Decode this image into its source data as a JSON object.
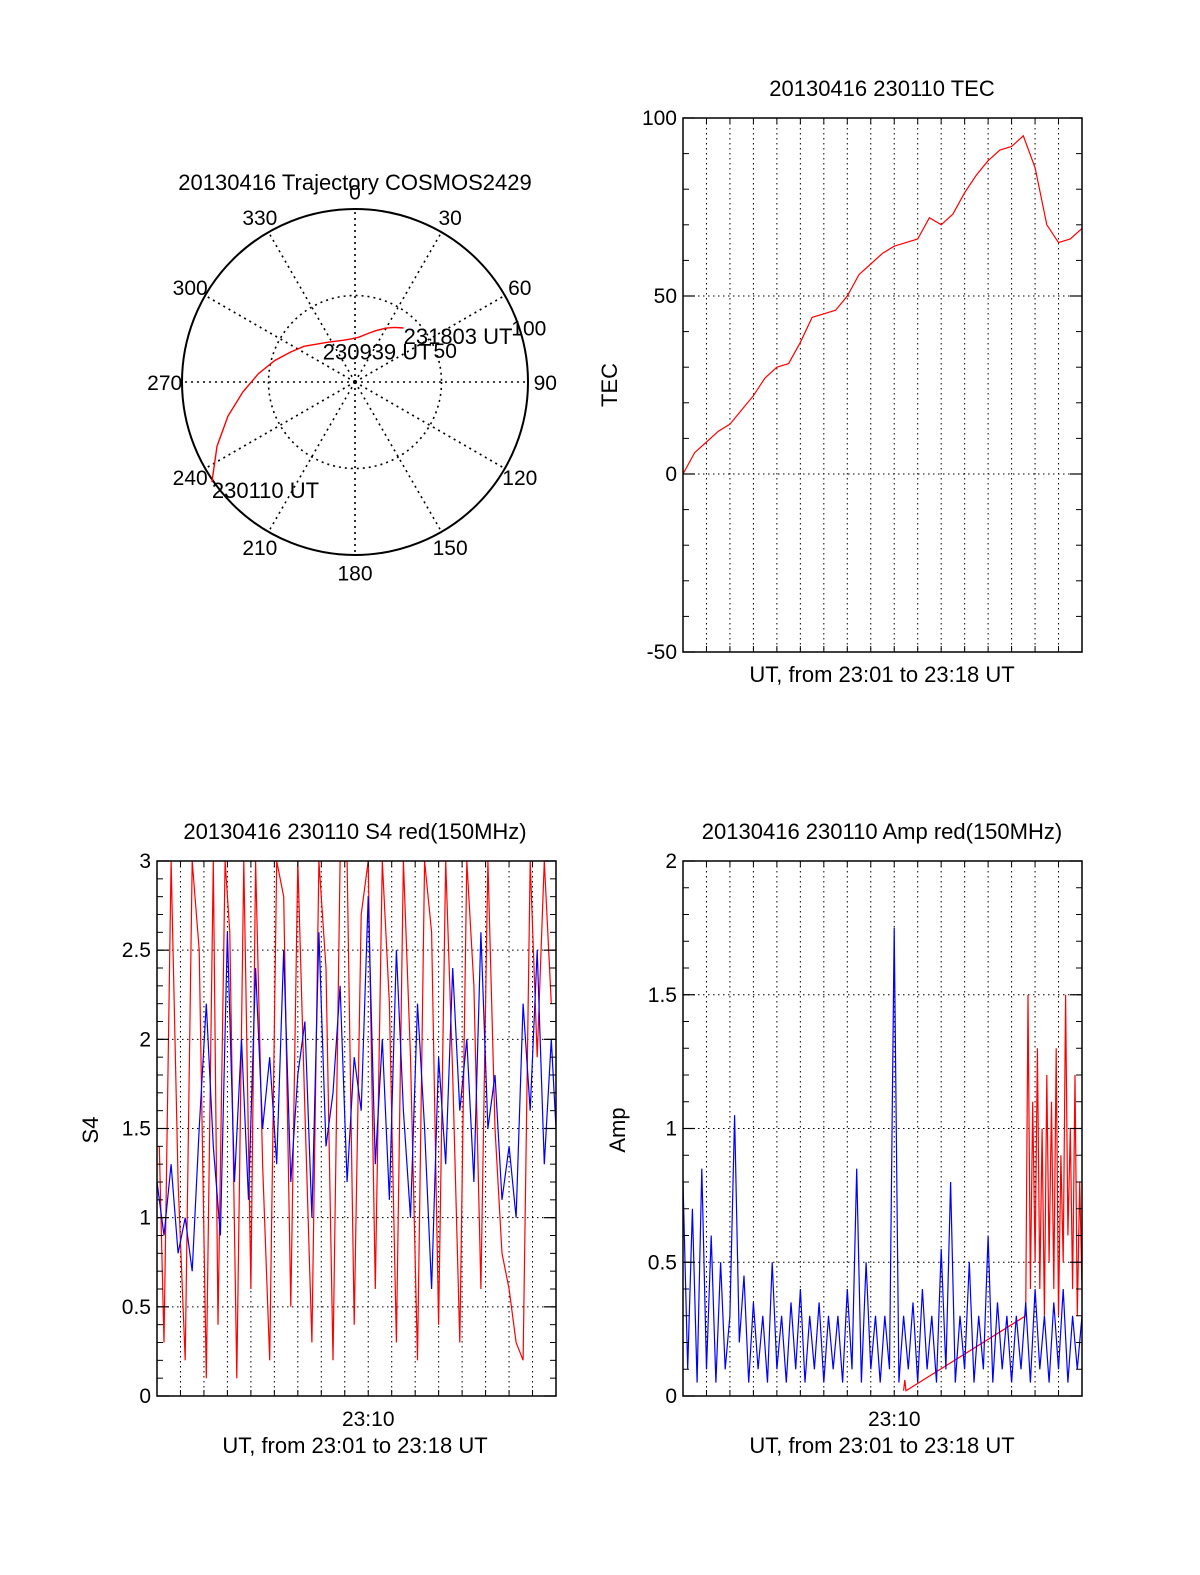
{
  "chart_data": [
    {
      "id": "trajectory",
      "type": "polar",
      "title": "20130416 Trajectory COSMOS2429",
      "angle_labels": [
        "0",
        "30",
        "60",
        "90",
        "120",
        "150",
        "180",
        "210",
        "240",
        "270",
        "300",
        "330"
      ],
      "radial_labels": [
        "50",
        "100"
      ],
      "radial_label_values": [
        50,
        100
      ],
      "series": [
        {
          "color": "#ff0000",
          "points": [
            [
              235,
              101
            ],
            [
              245,
              88
            ],
            [
              255,
              76
            ],
            [
              265,
              65
            ],
            [
              275,
              56
            ],
            [
              285,
              48
            ],
            [
              295,
              41
            ],
            [
              305,
              36
            ],
            [
              315,
              31
            ],
            [
              325,
              28
            ],
            [
              335,
              26
            ],
            [
              345,
              25
            ],
            [
              355,
              25
            ],
            [
              5,
              26
            ],
            [
              15,
              29
            ],
            [
              22,
              32
            ],
            [
              30,
              36
            ],
            [
              36,
              39
            ],
            [
              42,
              42
            ]
          ]
        }
      ],
      "annotations": [
        {
          "text": "230110 UT",
          "az": 235,
          "r": 101
        },
        {
          "text": "230939 UT",
          "az": 320,
          "r": 29
        },
        {
          "text": "231803 UT",
          "az": 42,
          "r": 42
        }
      ]
    },
    {
      "id": "tec",
      "type": "line",
      "title": "20130416 230110 TEC",
      "xlabel": "UT, from 23:01 to 23:18 UT",
      "ylabel": "TEC",
      "xlim": [
        0,
        17
      ],
      "ylim": [
        -50,
        100
      ],
      "yticks": [
        "-50",
        "0",
        "50",
        "100"
      ],
      "ytick_values": [
        -50,
        0,
        50,
        100
      ],
      "grid": true,
      "series": [
        {
          "color": "#ff0000",
          "x": [
            0,
            0.5,
            1,
            1.5,
            2,
            2.5,
            3,
            3.5,
            4,
            4.5,
            5,
            5.5,
            6,
            6.5,
            7,
            7.5,
            8,
            8.5,
            9,
            9.5,
            10,
            10.5,
            11,
            11.5,
            12,
            12.5,
            13,
            13.5,
            14,
            14.5,
            15,
            15.5,
            16,
            16.5,
            17
          ],
          "y": [
            0,
            6,
            9,
            12,
            14,
            18,
            22,
            27,
            30,
            31,
            37,
            44,
            45,
            46,
            50,
            56,
            59,
            62,
            64,
            65,
            66,
            72,
            70,
            73,
            79,
            84,
            88,
            91,
            92,
            95,
            86,
            70,
            65,
            66,
            69
          ]
        }
      ]
    },
    {
      "id": "s4",
      "type": "line",
      "title": "20130416 230110 S4 red(150MHz)",
      "xlabel": "UT, from 23:01 to 23:18 UT",
      "ylabel": "S4",
      "xlim": [
        0,
        17
      ],
      "ylim": [
        0,
        3
      ],
      "xticks": [
        "23:10"
      ],
      "xtick_values": [
        9
      ],
      "yticks": [
        "0",
        "0.5",
        "1",
        "1.5",
        "2",
        "2.5",
        "3"
      ],
      "ytick_values": [
        0,
        0.5,
        1,
        1.5,
        2,
        2.5,
        3
      ],
      "grid": true,
      "series": [
        {
          "color": "#ff0000",
          "x": [
            0.1,
            0.3,
            0.6,
            0.9,
            1.2,
            1.5,
            1.8,
            2.1,
            2.4,
            2.6,
            2.9,
            3.1,
            3.4,
            3.7,
            4.0,
            4.2,
            4.5,
            4.8,
            5.1,
            5.4,
            5.7,
            6.0,
            6.3,
            6.6,
            6.9,
            7.2,
            7.5,
            7.8,
            8.1,
            8.4,
            8.7,
            9.0,
            9.3,
            9.6,
            9.9,
            10.2,
            10.5,
            10.8,
            11.1,
            11.4,
            11.7,
            12.0,
            12.3,
            12.6,
            12.9,
            13.2,
            13.5,
            13.8,
            14.1,
            14.4,
            14.7,
            15.0,
            15.3,
            15.6,
            15.9,
            16.2,
            16.5,
            16.8
          ],
          "y": [
            1.4,
            0.3,
            3,
            1.2,
            0.2,
            3,
            2.5,
            0.1,
            3,
            0.4,
            3,
            2.6,
            0.1,
            3,
            0.6,
            3,
            1.3,
            0.2,
            3,
            2.8,
            0.5,
            3,
            1.6,
            0.3,
            3,
            2.4,
            0.2,
            3,
            3,
            0.4,
            2.7,
            3,
            0.6,
            3,
            2.2,
            0.3,
            3,
            1.9,
            0.2,
            3,
            2.6,
            0.4,
            3,
            1.8,
            0.3,
            3,
            2.3,
            0.6,
            3,
            1.5,
            0.8,
            0.6,
            0.3,
            0.2,
            3,
            1.9,
            3,
            2.2
          ]
        },
        {
          "color": "#0000ff",
          "x": [
            0,
            0.3,
            0.6,
            0.9,
            1.2,
            1.5,
            1.8,
            2.1,
            2.4,
            2.7,
            3.0,
            3.3,
            3.6,
            3.9,
            4.2,
            4.5,
            4.8,
            5.1,
            5.4,
            5.7,
            6.0,
            6.3,
            6.6,
            6.9,
            7.2,
            7.5,
            7.8,
            8.1,
            8.4,
            8.7,
            9.0,
            9.3,
            9.6,
            9.9,
            10.2,
            10.5,
            10.8,
            11.1,
            11.4,
            11.7,
            12.0,
            12.3,
            12.6,
            12.9,
            13.2,
            13.5,
            13.8,
            14.1,
            14.4,
            14.7,
            15.0,
            15.3,
            15.6,
            15.9,
            16.2,
            16.5,
            16.8,
            17
          ],
          "y": [
            1.2,
            0.9,
            1.3,
            0.8,
            1.0,
            0.7,
            1.5,
            2.2,
            1.4,
            0.9,
            2.6,
            1.2,
            2.0,
            1.1,
            2.4,
            1.5,
            1.9,
            1.3,
            2.5,
            1.2,
            1.8,
            2.1,
            1.0,
            2.6,
            1.4,
            1.7,
            2.3,
            1.2,
            1.9,
            1.6,
            2.8,
            1.3,
            2.0,
            1.1,
            2.5,
            1.6,
            1.0,
            2.2,
            1.5,
            0.6,
            1.9,
            1.3,
            2.4,
            1.6,
            2.0,
            1.2,
            2.6,
            1.5,
            1.8,
            1.1,
            1.4,
            1.0,
            2.2,
            1.6,
            2.5,
            1.3,
            2.0,
            1.5
          ]
        }
      ]
    },
    {
      "id": "amp",
      "type": "line",
      "title": "20130416 230110 Amp red(150MHz)",
      "xlabel": "UT, from 23:01 to 23:18 UT",
      "ylabel": "Amp",
      "xlim": [
        0,
        17
      ],
      "ylim": [
        0,
        2
      ],
      "xticks": [
        "23:10"
      ],
      "xtick_values": [
        9
      ],
      "yticks": [
        "0",
        "0.5",
        "1",
        "1.5",
        "2"
      ],
      "ytick_values": [
        0,
        0.5,
        1,
        1.5,
        2
      ],
      "grid": true,
      "series": [
        {
          "color": "#ff0000",
          "x": [
            9.4,
            9.45,
            9.5,
            14.6,
            14.7,
            14.8,
            14.9,
            15.0,
            15.1,
            15.2,
            15.3,
            15.4,
            15.5,
            15.6,
            15.7,
            15.8,
            15.9,
            16.0,
            16.1,
            16.2,
            16.3,
            16.4,
            16.5,
            16.6,
            16.7,
            16.8,
            16.9,
            17.0
          ],
          "y": [
            0.02,
            0.06,
            0.02,
            0.3,
            1.5,
            0.4,
            1.1,
            0.5,
            1.3,
            0.4,
            1.0,
            0.3,
            1.2,
            0.5,
            1.1,
            0.4,
            1.3,
            0.3,
            0.9,
            0.5,
            1.5,
            0.6,
            1.0,
            0.4,
            1.2,
            0.3,
            0.8,
            0.4
          ]
        },
        {
          "color": "#0000ff",
          "x": [
            0,
            0.2,
            0.4,
            0.6,
            0.8,
            1.0,
            1.2,
            1.4,
            1.6,
            1.8,
            2.0,
            2.2,
            2.4,
            2.6,
            2.8,
            3.0,
            3.2,
            3.4,
            3.6,
            3.8,
            4.0,
            4.2,
            4.4,
            4.6,
            4.8,
            5.0,
            5.2,
            5.4,
            5.6,
            5.8,
            6.0,
            6.2,
            6.4,
            6.6,
            6.8,
            7.0,
            7.2,
            7.4,
            7.6,
            7.8,
            8.0,
            8.2,
            8.4,
            8.6,
            8.8,
            9.0,
            9.2,
            9.4,
            9.6,
            9.8,
            10.0,
            10.2,
            10.4,
            10.6,
            10.8,
            11.0,
            11.2,
            11.4,
            11.6,
            11.8,
            12.0,
            12.2,
            12.4,
            12.6,
            12.8,
            13.0,
            13.2,
            13.4,
            13.6,
            13.8,
            14.0,
            14.2,
            14.4,
            14.6,
            14.8,
            15.0,
            15.2,
            15.4,
            15.6,
            15.8,
            16.0,
            16.2,
            16.4,
            16.6,
            16.8,
            17.0
          ],
          "y": [
            0.8,
            0.1,
            0.7,
            0.05,
            0.85,
            0.1,
            0.6,
            0.05,
            0.5,
            0.1,
            0.3,
            1.05,
            0.2,
            0.45,
            0.05,
            0.35,
            0.1,
            0.3,
            0.05,
            0.5,
            0.1,
            0.3,
            0.05,
            0.35,
            0.1,
            0.4,
            0.05,
            0.3,
            0.1,
            0.35,
            0.05,
            0.3,
            0.1,
            0.3,
            0.05,
            0.4,
            0.1,
            0.85,
            0.05,
            0.5,
            0.1,
            0.3,
            0.05,
            0.3,
            0.1,
            1.75,
            0.05,
            0.3,
            0.1,
            0.35,
            0.05,
            0.4,
            0.1,
            0.3,
            0.05,
            0.55,
            0.1,
            0.8,
            0.05,
            0.3,
            0.1,
            0.5,
            0.05,
            0.3,
            0.1,
            0.6,
            0.05,
            0.35,
            0.1,
            0.3,
            0.05,
            0.3,
            0.1,
            0.35,
            0.05,
            0.4,
            0.1,
            0.3,
            0.05,
            0.35,
            0.1,
            0.4,
            0.05,
            0.3,
            0.1,
            0.3
          ]
        }
      ]
    }
  ]
}
